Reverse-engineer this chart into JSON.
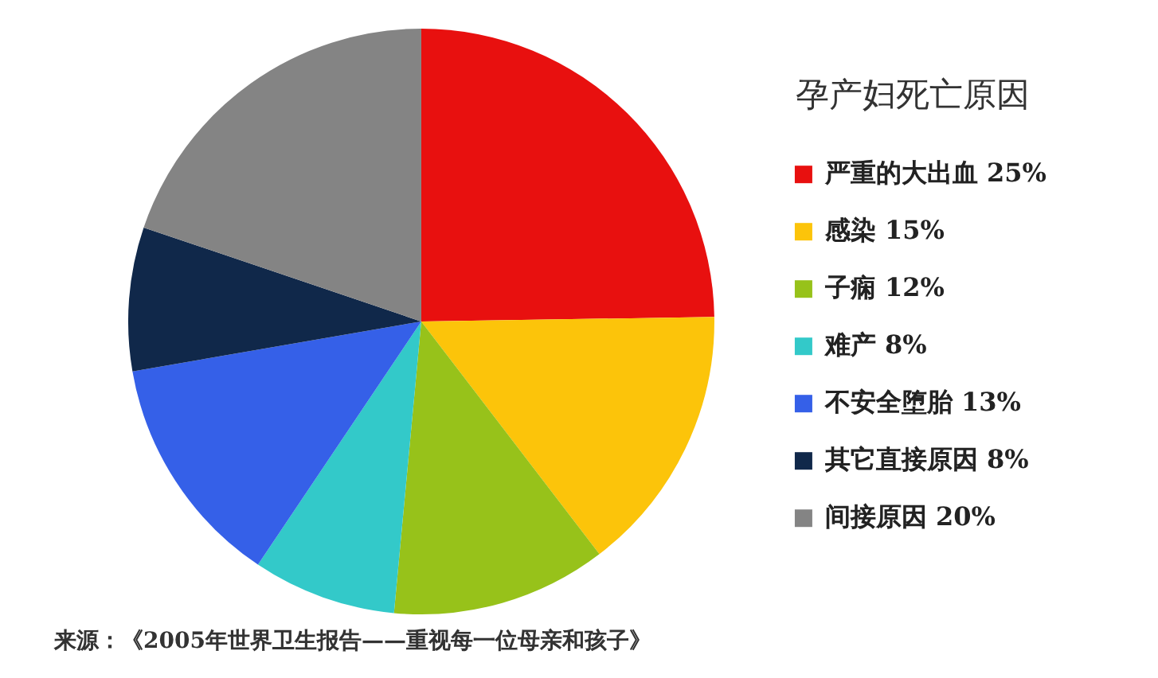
{
  "chart_data": {
    "type": "pie",
    "legend_title": "孕产妇死亡原因",
    "categories": [
      "严重的大出血 25%",
      "感染 15%",
      "子痫 12%",
      "难产 8%",
      "不安全堕胎 13%",
      "其它直接原因 8%",
      "间接原因 20%"
    ],
    "values": [
      25,
      15,
      12,
      8,
      13,
      8,
      20
    ],
    "colors": [
      "#e8100f",
      "#fcc40a",
      "#97c21a",
      "#33c9c9",
      "#3560e8",
      "#10284a",
      "#848484"
    ],
    "legend": "right",
    "annotations": [
      "来源：《2005年世界卫生报告——重视每一位母亲和孩子》"
    ]
  }
}
